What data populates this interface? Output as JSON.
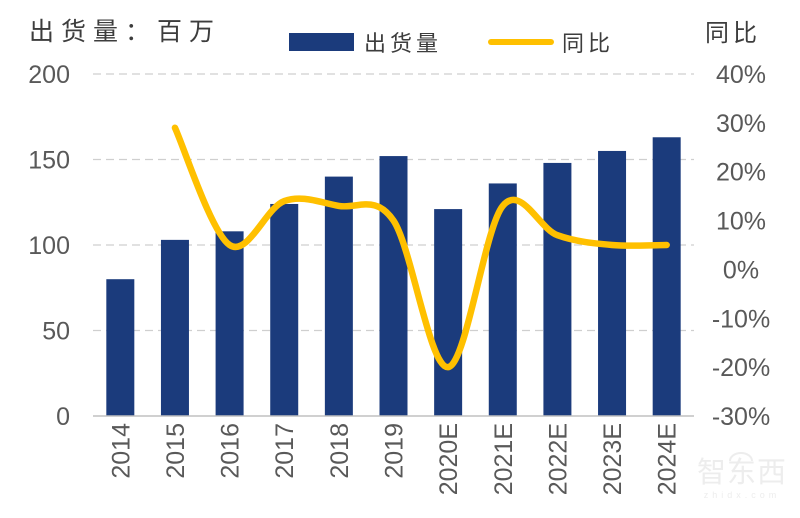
{
  "header": {
    "left_axis_title": "出货量：百万",
    "right_axis_title": "同比"
  },
  "legend": {
    "items": [
      {
        "label": "出货量",
        "marker": "bar-swatch",
        "color": "#1B3B7C"
      },
      {
        "label": "同比",
        "marker": "line-swatch",
        "color": "#FFC000"
      }
    ]
  },
  "watermark": {
    "text": "智东西",
    "subtext": "zhidx.com"
  },
  "chart_data": {
    "type": "bar",
    "combo": "bar+line",
    "title": "",
    "categories": [
      "2014",
      "2015",
      "2016",
      "2017",
      "2018",
      "2019",
      "2020E",
      "2021E",
      "2022E",
      "2023E",
      "2024E"
    ],
    "series": [
      {
        "name": "出货量",
        "type": "bar",
        "axis": "left",
        "color": "#1B3B7C",
        "values": [
          80,
          103,
          108,
          124,
          140,
          152,
          121,
          136,
          148,
          155,
          163
        ]
      },
      {
        "name": "同比",
        "type": "line",
        "axis": "right",
        "color": "#FFC000",
        "unit": "%",
        "values": [
          null,
          29,
          5,
          14,
          13,
          10,
          -20,
          13,
          7,
          5,
          5
        ]
      }
    ],
    "left_axis": {
      "label": "出货量：百万",
      "ticks": [
        0,
        50,
        100,
        150,
        200
      ],
      "range": [
        0,
        200
      ]
    },
    "right_axis": {
      "label": "同比",
      "ticks_percent": [
        40,
        30,
        20,
        10,
        0,
        -10,
        -20,
        -30
      ],
      "range": [
        -30,
        40
      ]
    },
    "gridlines": "horizontal-dashed",
    "legend_position": "top",
    "x_tick_rotation": -90
  },
  "colors": {
    "bar": "#1B3B7C",
    "line": "#FFC000",
    "grid": "#CFCFCF",
    "axis": "#C0C0C0",
    "tick_text": "#595959",
    "title_text": "#3D3D3D",
    "watermark": "#EDEDED"
  }
}
